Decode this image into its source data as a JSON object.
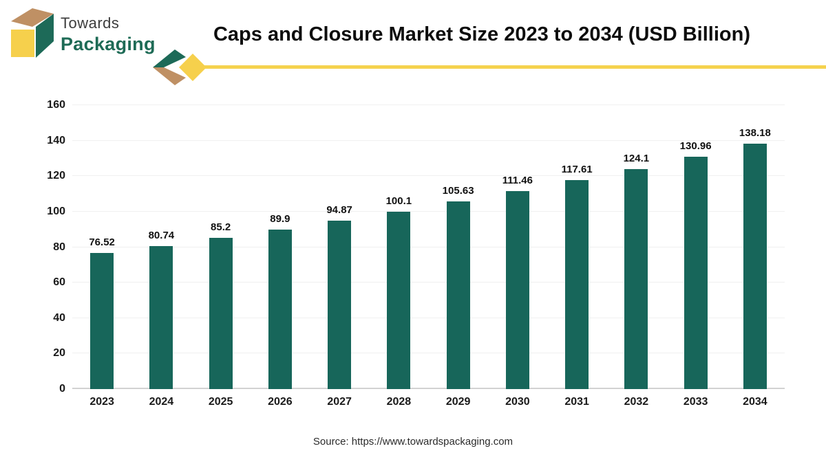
{
  "logo": {
    "line1": "Towards",
    "line2": "Packaging"
  },
  "header": {
    "title": "Caps and Closure Market Size 2023 to 2034 (USD Billion)"
  },
  "source": {
    "text": "Source: https://www.towardspackaging.com"
  },
  "colors": {
    "bar": "#17665a",
    "logo_green": "#1d6a58",
    "logo_tan": "#bf9064",
    "logo_yellow": "#f6d04c",
    "ribbon_yellow": "#f5d24e",
    "title_text": "#0d0d0d",
    "axis_text": "#1a1a1a",
    "gridline": "#f0f0f0"
  },
  "chart_data": {
    "type": "bar",
    "title": "Caps and Closure Market Size 2023 to 2034 (USD Billion)",
    "categories": [
      "2023",
      "2024",
      "2025",
      "2026",
      "2027",
      "2028",
      "2029",
      "2030",
      "2031",
      "2032",
      "2033",
      "2034"
    ],
    "values": [
      76.52,
      80.74,
      85.2,
      89.9,
      94.87,
      100.1,
      105.63,
      111.46,
      117.61,
      124.1,
      130.96,
      138.18
    ],
    "value_labels": [
      "76.52",
      "80.74",
      "85.2",
      "89.9",
      "94.87",
      "100.1",
      "105.63",
      "111.46",
      "117.61",
      "124.1",
      "130.96",
      "138.18"
    ],
    "xlabel": "",
    "ylabel": "",
    "ylim": [
      0,
      160
    ],
    "yticks": [
      0,
      20,
      40,
      60,
      80,
      100,
      120,
      140,
      160
    ],
    "grid": true,
    "legend": false,
    "bar_color": "#17665a"
  }
}
